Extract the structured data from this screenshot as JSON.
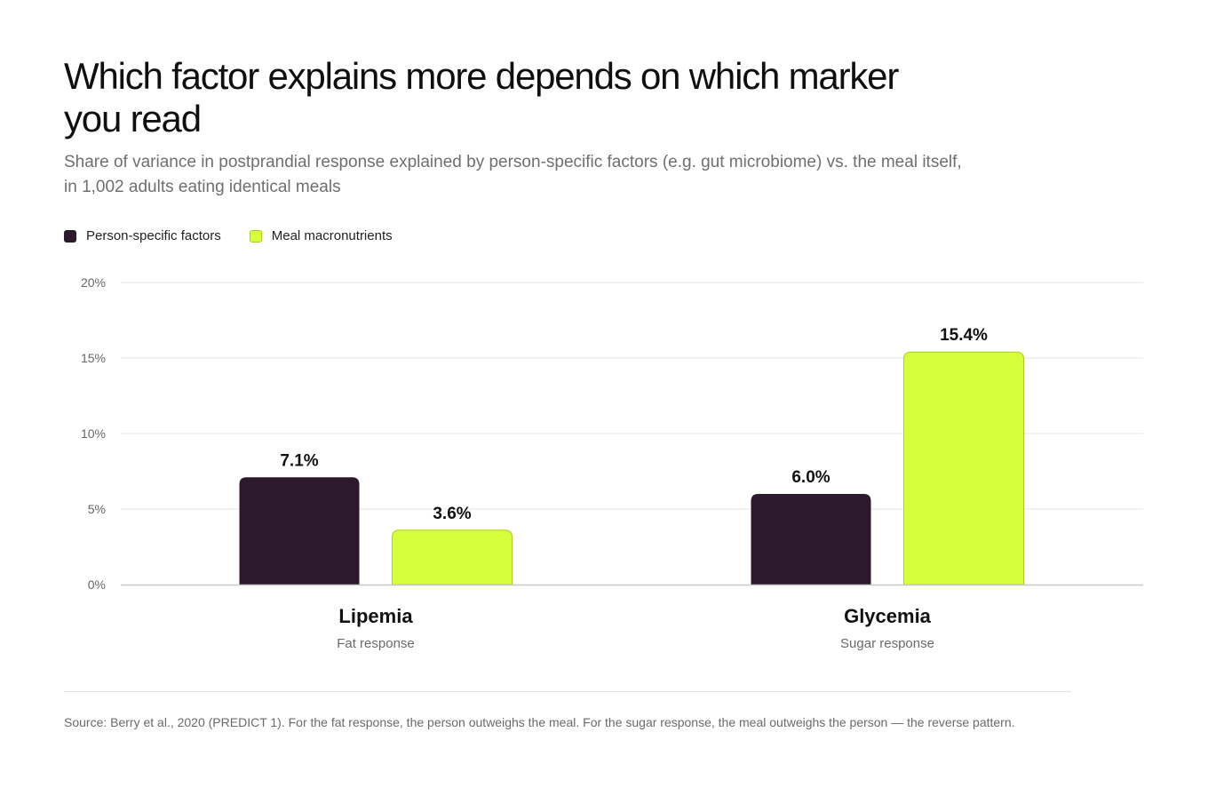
{
  "title": "Which factor explains more depends on which marker you read",
  "subtitle": "Share of variance in postprandial response explained by person-specific factors (e.g. gut microbiome) vs. the meal itself, in 1,002 adults eating identical meals",
  "legend": [
    {
      "label": "Person-specific factors",
      "color": "#2c1a2c"
    },
    {
      "label": "Meal macronutrients",
      "color": "#d6ff3c"
    }
  ],
  "source": "Source: Berry et al., 2020 (PREDICT 1). For the fat response, the person outweighs the meal. For the sugar response, the meal outweighs the person — the reverse pattern.",
  "chart_data": {
    "type": "bar",
    "title": "Which factor explains more depends on which marker you read",
    "categories": [
      "Lipemia",
      "Glycemia"
    ],
    "category_sublabels": [
      "Fat response",
      "Sugar response"
    ],
    "series": [
      {
        "name": "Person-specific factors",
        "values": [
          7.1,
          6.0
        ],
        "labels": [
          "7.1%",
          "6.0%"
        ],
        "color": "#2c1a2c"
      },
      {
        "name": "Meal macronutrients",
        "values": [
          3.6,
          15.4
        ],
        "labels": [
          "3.6%",
          "15.4%"
        ],
        "color": "#d6ff3c"
      }
    ],
    "ylim": [
      0,
      20
    ],
    "yticks": [
      0,
      5,
      10,
      15,
      20
    ],
    "ytick_labels": [
      "0%",
      "5%",
      "10%",
      "15%",
      "20%"
    ],
    "xlabel": "",
    "ylabel": "",
    "grid": true,
    "legend_position": "top-left"
  }
}
